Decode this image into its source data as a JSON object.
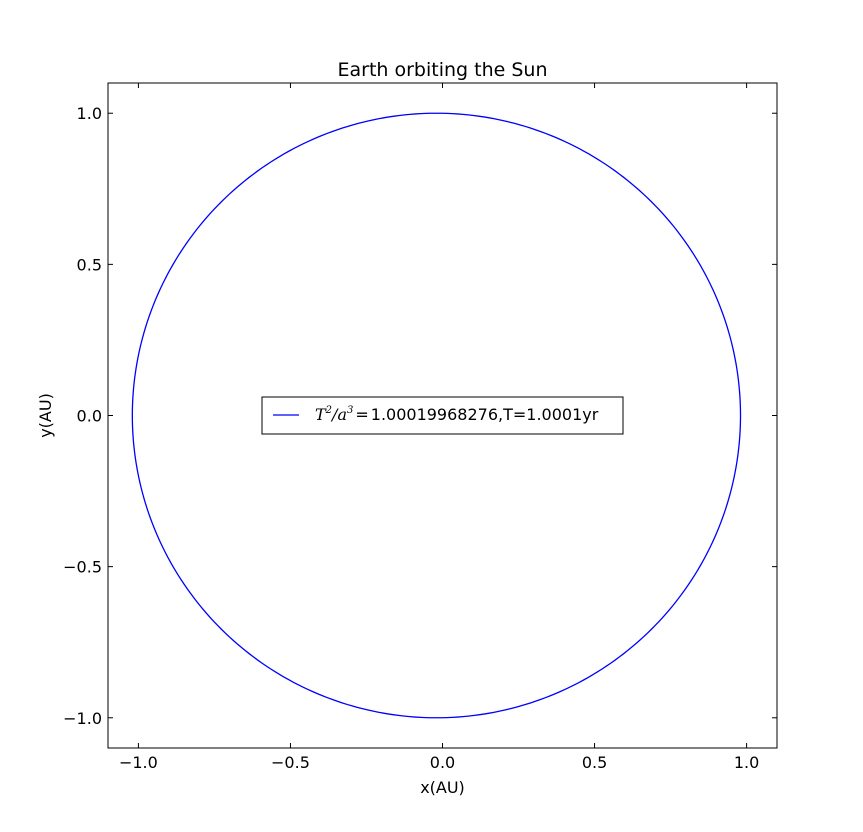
{
  "chart_data": {
    "type": "line",
    "title": "Earth orbiting the Sun",
    "xlabel": "x(AU)",
    "ylabel": "y(AU)",
    "xlim": [
      -1.1,
      1.1
    ],
    "ylim": [
      -1.1,
      1.1
    ],
    "xticks": [
      -1.0,
      -0.5,
      0.0,
      0.5,
      1.0
    ],
    "yticks": [
      -1.0,
      -0.5,
      0.0,
      0.5,
      1.0
    ],
    "xtick_labels": [
      "−1.0",
      "−0.5",
      "0.0",
      "0.5",
      "1.0"
    ],
    "ytick_labels": [
      "−1.0",
      "−0.5",
      "0.0",
      "0.5",
      "1.0"
    ],
    "grid": false,
    "legend_placement": "center",
    "series": [
      {
        "name": "T²/a³=1.00019968276,T=1.0001yr",
        "color": "#0000ff",
        "shape": "ellipse",
        "center": [
          -0.02,
          0.0
        ],
        "semi_axis_x": 1.0,
        "semi_axis_y": 1.0,
        "points": [
          [
            0.98,
            0.0
          ],
          [
            0.846,
            0.5
          ],
          [
            0.48,
            0.866
          ],
          [
            -0.02,
            1.0
          ],
          [
            -0.52,
            0.866
          ],
          [
            -0.886,
            0.5
          ],
          [
            -1.02,
            0.0
          ],
          [
            -0.886,
            -0.5
          ],
          [
            -0.52,
            -0.866
          ],
          [
            -0.02,
            -1.0
          ],
          [
            0.48,
            -0.866
          ],
          [
            0.846,
            -0.5
          ]
        ]
      }
    ]
  },
  "legend": {
    "math_T": "T",
    "math_T_exp": "2",
    "math_slash": "/",
    "math_a": "a",
    "math_a_exp": "3",
    "math_eq": "=",
    "value_text": "1.00019968276,T=1.0001yr"
  },
  "colors": {
    "line": "#0000ff",
    "axes": "#000000",
    "background": "#ffffff"
  }
}
